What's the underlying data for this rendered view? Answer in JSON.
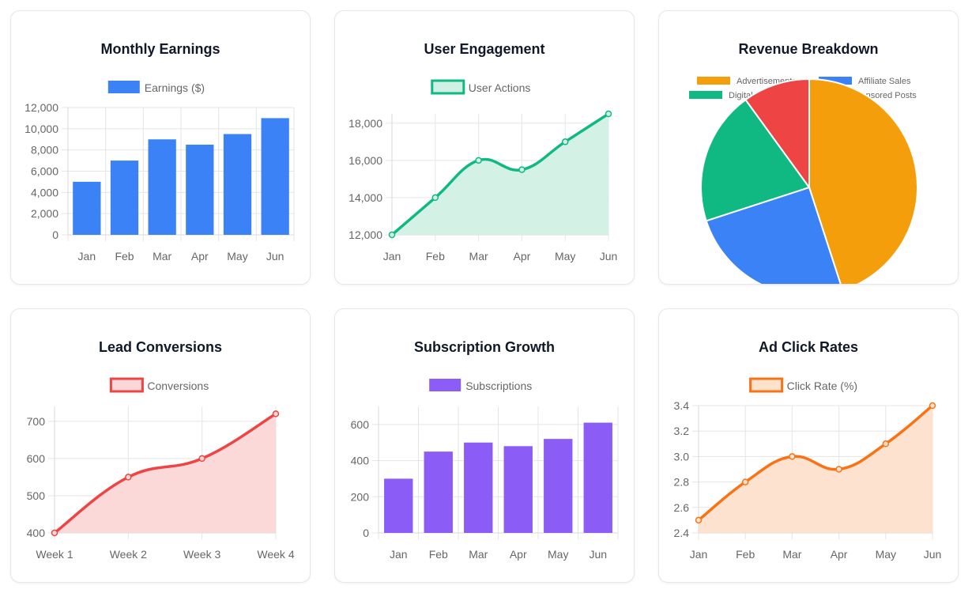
{
  "chart_data": [
    {
      "type": "bar",
      "title": "Monthly Earnings",
      "categories": [
        "Jan",
        "Feb",
        "Mar",
        "Apr",
        "May",
        "Jun"
      ],
      "series": [
        {
          "name": "Earnings ($)",
          "values": [
            5000,
            7000,
            9000,
            8500,
            9500,
            11000
          ]
        }
      ],
      "ylim": [
        0,
        12000
      ],
      "yticks": [
        "0",
        "2,000",
        "4,000",
        "6,000",
        "8,000",
        "10,000",
        "12,000"
      ],
      "grid": true,
      "legend": "top",
      "colors": {
        "fill": "#3b82f6",
        "stroke": "#3b82f6"
      }
    },
    {
      "type": "area",
      "title": "User Engagement",
      "categories": [
        "Jan",
        "Feb",
        "Mar",
        "Apr",
        "May",
        "Jun"
      ],
      "series": [
        {
          "name": "User Actions",
          "values": [
            12000,
            14000,
            16000,
            15500,
            17000,
            18500
          ]
        }
      ],
      "ylim": [
        12000,
        18500
      ],
      "yticks": [
        "12,000",
        "14,000",
        "16,000",
        "18,000"
      ],
      "grid": true,
      "legend": "top",
      "colors": {
        "fill": "#d1f0e4",
        "stroke": "#10b981"
      }
    },
    {
      "type": "pie",
      "title": "Revenue Breakdown",
      "categories": [
        "Advertisements",
        "Affiliate Sales",
        "Digital Products",
        "Sponsored Posts"
      ],
      "values": [
        45,
        25,
        20,
        10
      ],
      "legend": "top",
      "colors": [
        "#f59e0b",
        "#3b82f6",
        "#10b981",
        "#ef4444"
      ]
    },
    {
      "type": "area",
      "title": "Lead Conversions",
      "categories": [
        "Week 1",
        "Week 2",
        "Week 3",
        "Week 4"
      ],
      "series": [
        {
          "name": "Conversions",
          "values": [
            400,
            550,
            600,
            720
          ]
        }
      ],
      "ylim": [
        400,
        740
      ],
      "yticks": [
        "400",
        "500",
        "600",
        "700"
      ],
      "grid": true,
      "legend": "top",
      "colors": {
        "fill": "#fbd7d7",
        "stroke": "#ef4444"
      }
    },
    {
      "type": "bar",
      "title": "Subscription Growth",
      "categories": [
        "Jan",
        "Feb",
        "Mar",
        "Apr",
        "May",
        "Jun"
      ],
      "series": [
        {
          "name": "Subscriptions",
          "values": [
            300,
            450,
            500,
            480,
            520,
            610
          ]
        }
      ],
      "ylim": [
        0,
        700
      ],
      "yticks": [
        "0",
        "200",
        "400",
        "600"
      ],
      "grid": true,
      "legend": "top",
      "colors": {
        "fill": "#8b5cf6",
        "stroke": "#8b5cf6"
      }
    },
    {
      "type": "area",
      "title": "Ad Click Rates",
      "categories": [
        "Jan",
        "Feb",
        "Mar",
        "Apr",
        "May",
        "Jun"
      ],
      "series": [
        {
          "name": "Click Rate (%)",
          "values": [
            2.5,
            2.8,
            3.0,
            2.9,
            3.1,
            3.4
          ]
        }
      ],
      "ylim": [
        2.4,
        3.4
      ],
      "yticks": [
        "2.4",
        "2.6",
        "2.8",
        "3.0",
        "3.2",
        "3.4"
      ],
      "grid": true,
      "legend": "top",
      "colors": {
        "fill": "#fde2cc",
        "stroke": "#f97316"
      }
    }
  ]
}
